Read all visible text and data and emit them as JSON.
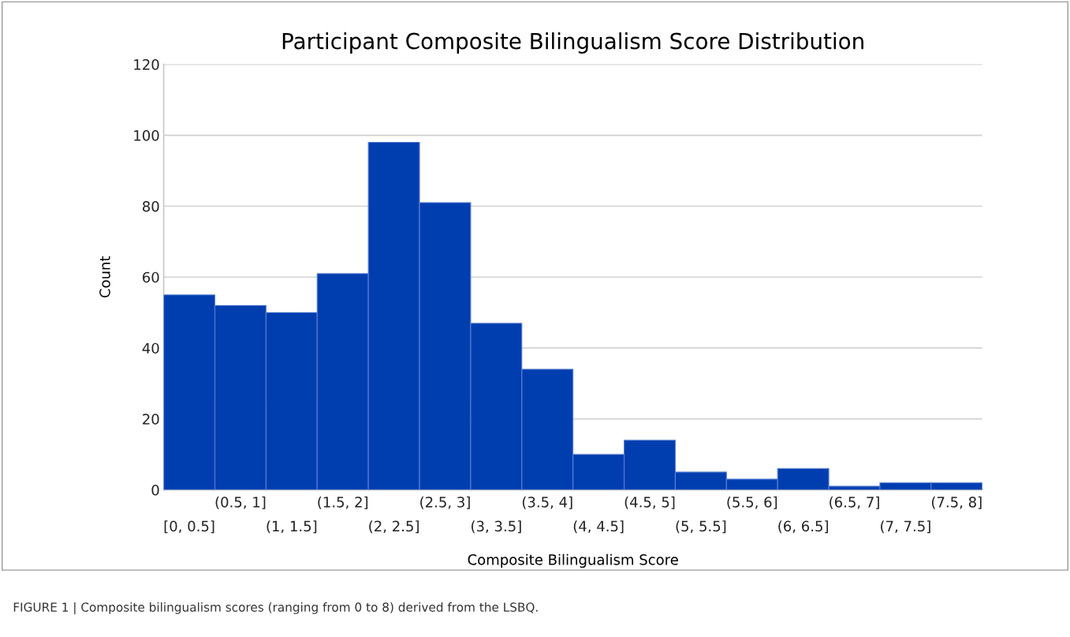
{
  "chart_data": {
    "type": "bar",
    "title": "Participant Composite Bilingualism Score Distribution",
    "xlabel": "Composite Bilingualism Score",
    "ylabel": "Count",
    "categories": [
      "[0, 0.5]",
      "(0.5, 1]",
      "(1, 1.5]",
      "(1.5, 2]",
      "(2, 2.5]",
      "(2.5, 3]",
      "(3, 3.5]",
      "(3.5, 4]",
      "(4, 4.5]",
      "(4.5, 5]",
      "(5, 5.5]",
      "(5.5, 6]",
      "(6, 6.5]",
      "(6.5, 7]",
      "(7, 7.5]",
      "(7.5, 8]"
    ],
    "values": [
      55,
      52,
      50,
      61,
      98,
      81,
      47,
      34,
      10,
      14,
      5,
      3,
      6,
      1,
      2,
      2
    ],
    "color": "#003eb0",
    "ylim": [
      0,
      120
    ],
    "yticks": [
      0,
      20,
      40,
      60,
      80,
      100,
      120
    ],
    "grid": "y",
    "annotations": [
      "FIGURE 1 | Composite bilingualism scores (ranging from 0 to 8) derived from the LSBQ."
    ]
  }
}
